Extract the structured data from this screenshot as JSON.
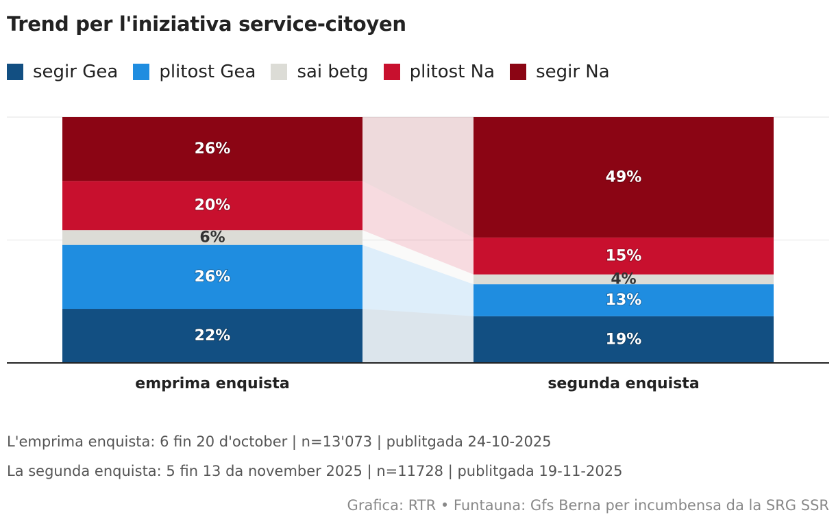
{
  "title": "Trend per l'iniziativa service-citoyen",
  "legend": [
    {
      "label": "segir Gea",
      "color": "#124f82"
    },
    {
      "label": "plitost Gea",
      "color": "#1f8de0"
    },
    {
      "label": "sai betg",
      "color": "#dcdcd6"
    },
    {
      "label": "plitost Na",
      "color": "#c8102e"
    },
    {
      "label": "segir Na",
      "color": "#8b0514"
    }
  ],
  "chart_data": {
    "type": "bar",
    "stacked": true,
    "stack_total": 100,
    "categories": [
      "emprima enquista",
      "segunda enquista"
    ],
    "series": [
      {
        "name": "segir Gea",
        "values": [
          22,
          19
        ],
        "color": "#124f82"
      },
      {
        "name": "plitost Gea",
        "values": [
          26,
          13
        ],
        "color": "#1f8de0"
      },
      {
        "name": "sai betg",
        "values": [
          6,
          4
        ],
        "color": "#dcdcd6"
      },
      {
        "name": "plitost Na",
        "values": [
          20,
          15
        ],
        "color": "#c8102e"
      },
      {
        "name": "segir Na",
        "values": [
          26,
          49
        ],
        "color": "#8b0514"
      }
    ],
    "data_labels": [
      [
        "22%",
        "19%"
      ],
      [
        "26%",
        "13%"
      ],
      [
        "6%",
        "4%"
      ],
      [
        "20%",
        "15%"
      ],
      [
        "26%",
        "49%"
      ]
    ],
    "grid": true,
    "legend_position": "top-left"
  },
  "notes": [
    "L'emprima enquista: 6 fin 20 d'october | n=13'073 | publitgada 24-10-2025",
    "La segunda enquista: 5 fin 13 da november 2025 | n=11728 | publitgada 19-11-2025"
  ],
  "source": "Grafica: RTR • Funtauna: Gfs Berna per incumbensa da la SRG SSR"
}
